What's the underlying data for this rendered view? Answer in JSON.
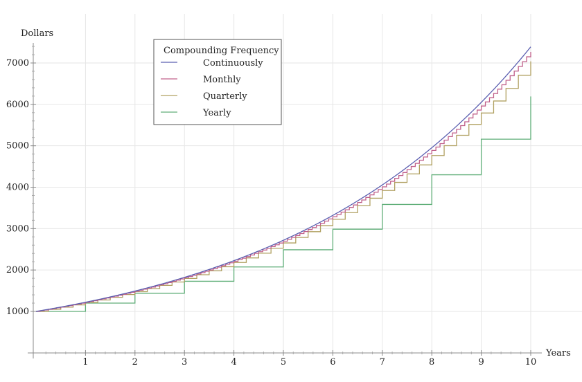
{
  "chart_data": {
    "type": "line",
    "title": "",
    "xlabel": "Years",
    "ylabel": "Dollars",
    "xlim": [
      0,
      10
    ],
    "ylim": [
      800,
      7500
    ],
    "x_ticks": [
      1,
      2,
      3,
      4,
      5,
      6,
      7,
      8,
      9,
      10
    ],
    "y_ticks": [
      1000,
      2000,
      3000,
      4000,
      5000,
      6000,
      7000
    ],
    "grid": true,
    "legend": {
      "title": "Compounding Frequency",
      "placement": "top-left"
    },
    "principal": 1000,
    "annual_rate": 0.2,
    "series": [
      {
        "name": "Continuously",
        "periods_per_year": 0,
        "color": "#5b5fb0"
      },
      {
        "name": "Monthly",
        "periods_per_year": 12,
        "color": "#c0608a"
      },
      {
        "name": "Quarterly",
        "periods_per_year": 4,
        "color": "#b0a060"
      },
      {
        "name": "Yearly",
        "periods_per_year": 1,
        "color": "#5fae78"
      }
    ]
  }
}
